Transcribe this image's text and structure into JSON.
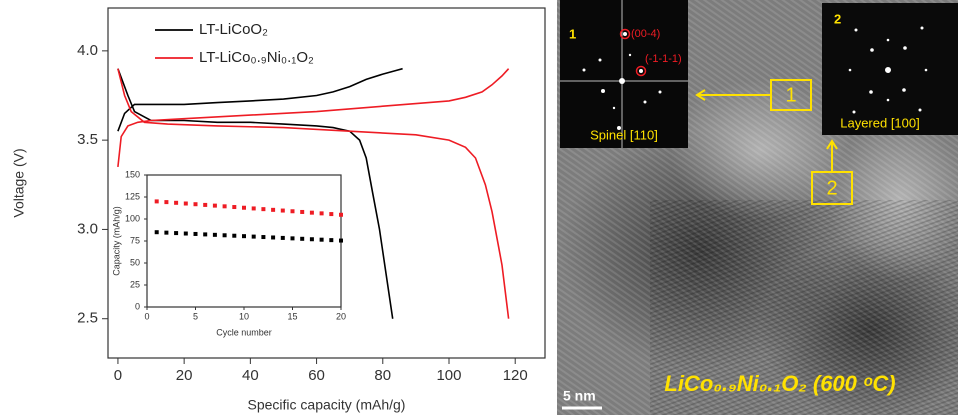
{
  "chart_data": [
    {
      "type": "line",
      "xlabel": "Specific capacity (mAh/g)",
      "ylabel": "Voltage (V)",
      "xlim": [
        -3,
        129
      ],
      "ylim": [
        2.28,
        4.24
      ],
      "xticks": [
        0,
        20,
        40,
        60,
        80,
        100,
        120
      ],
      "yticks": [
        2.5,
        {
          "value": 3,
          "label": "3.0"
        },
        3.5,
        {
          "value": 4,
          "label": "4.0"
        }
      ],
      "legend": "upper center",
      "series": [
        {
          "name": "LT-LiCoO₂",
          "color": "#000000",
          "x": [
            0,
            2,
            5,
            10,
            20,
            30,
            40,
            50,
            60,
            65,
            70,
            75,
            80,
            84,
            86,
            null,
            0,
            3,
            5,
            8,
            10,
            20,
            30,
            40,
            50,
            60,
            65,
            70,
            73,
            75,
            77,
            79,
            81,
            83
          ],
          "values": [
            3.55,
            3.65,
            3.7,
            3.7,
            3.7,
            3.71,
            3.72,
            3.73,
            3.75,
            3.77,
            3.8,
            3.84,
            3.87,
            3.89,
            3.9,
            null,
            3.9,
            3.75,
            3.66,
            3.63,
            3.61,
            3.61,
            3.6,
            3.6,
            3.59,
            3.58,
            3.57,
            3.55,
            3.5,
            3.4,
            3.2,
            3.0,
            2.75,
            2.5
          ]
        },
        {
          "name": "LT-LiCo₀.₉Ni₀.₁O₂",
          "color": "#ee1c24",
          "x": [
            0,
            1,
            3,
            6,
            10,
            20,
            40,
            60,
            80,
            100,
            105,
            110,
            113,
            116,
            118,
            null,
            0,
            2,
            4,
            8,
            15,
            30,
            50,
            70,
            90,
            100,
            105,
            108,
            111,
            113,
            115,
            116,
            117,
            118
          ],
          "values": [
            3.35,
            3.52,
            3.58,
            3.6,
            3.61,
            3.62,
            3.64,
            3.66,
            3.69,
            3.72,
            3.74,
            3.77,
            3.81,
            3.86,
            3.9,
            null,
            3.9,
            3.75,
            3.66,
            3.6,
            3.59,
            3.58,
            3.57,
            3.55,
            3.53,
            3.5,
            3.46,
            3.4,
            3.25,
            3.1,
            2.9,
            2.8,
            2.65,
            2.5
          ]
        }
      ]
    },
    {
      "type": "scatter",
      "xlabel": "Cycle number",
      "ylabel": "Capacity (mAh/g)",
      "xlim": [
        0,
        20
      ],
      "ylim": [
        0,
        150
      ],
      "xticks": [
        0,
        5,
        10,
        15,
        20
      ],
      "yticks": [
        0,
        25,
        50,
        75,
        100,
        125,
        150
      ],
      "series": [
        {
          "color": "#ee1c24",
          "x": [
            1,
            2,
            3,
            4,
            5,
            6,
            7,
            8,
            9,
            10,
            11,
            12,
            13,
            14,
            15,
            16,
            17,
            18,
            19,
            20
          ],
          "values": [
            120,
            119.2,
            118.4,
            117.6,
            116.8,
            116,
            115.2,
            114.4,
            113.6,
            112.8,
            112,
            111.2,
            110.4,
            109.6,
            108.8,
            108,
            107.2,
            106.4,
            105.6,
            104.8
          ]
        },
        {
          "color": "#000000",
          "x": [
            1,
            2,
            3,
            4,
            5,
            6,
            7,
            8,
            9,
            10,
            11,
            12,
            13,
            14,
            15,
            16,
            17,
            18,
            19,
            20
          ],
          "values": [
            85,
            84.5,
            84,
            83.5,
            83,
            82.5,
            82,
            81.5,
            81,
            80.5,
            80,
            79.5,
            79,
            78.5,
            78,
            77.5,
            77,
            76.5,
            76,
            75.5
          ]
        }
      ]
    }
  ],
  "micrograph": {
    "fft1": {
      "number": "1",
      "spot_a": "(00-4)",
      "spot_b": "(-1-1-1)",
      "caption": "Spinel [110]"
    },
    "fft2": {
      "number": "2",
      "caption": "Layered [100]"
    },
    "callouts": [
      "1",
      "2"
    ],
    "scale_bar": "5 nm",
    "sample": "LiCo₀.₉Ni₀.₁O₂ (600 ᵒC)"
  }
}
